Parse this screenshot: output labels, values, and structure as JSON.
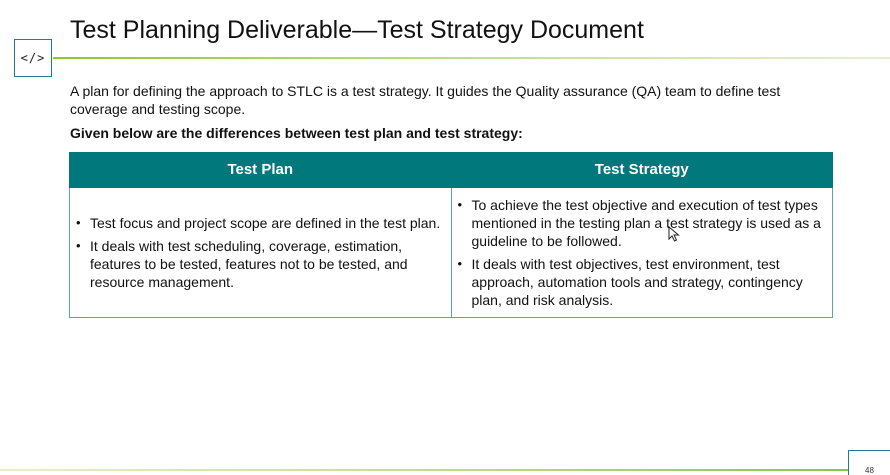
{
  "header": {
    "code_icon_glyph": "</>",
    "title": "Test Planning Deliverable—Test Strategy Document"
  },
  "intro": "A plan for defining the approach to STLC is a test strategy. It guides the Quality assurance (QA) team to define test coverage and testing scope.",
  "subheading": "Given below are the differences between test plan and test strategy:",
  "table": {
    "columns": [
      "Test Plan",
      "Test Strategy"
    ],
    "test_plan_points": [
      "Test focus and project scope are defined in the test plan.",
      "It deals with test scheduling, coverage, estimation, features to be tested, features not to be tested, and resource management."
    ],
    "test_strategy_points": [
      "To achieve the test objective and execution of test types mentioned in the testing plan a test strategy is used as a guideline to be followed.",
      " It deals with test objectives, test environment, test approach, automation tools and strategy, contingency plan, and risk analysis."
    ]
  },
  "footer": {
    "page_number": "48"
  },
  "colors": {
    "header_fill": "#00787c",
    "accent_green": "#8ec63f",
    "frame_teal": "#1a7f86"
  }
}
